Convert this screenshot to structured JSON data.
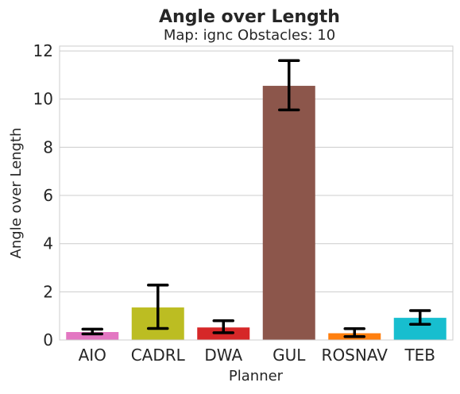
{
  "chart_data": {
    "type": "bar",
    "title": "Angle over Length",
    "subtitle": "Map: ignc Obstacles: 10",
    "xlabel": "Planner",
    "ylabel": "Angle over Length",
    "ylim": [
      0,
      12.2
    ],
    "yticks": [
      0,
      2,
      4,
      6,
      8,
      10,
      12
    ],
    "grid": "horizontal",
    "categories": [
      "AIO",
      "CADRL",
      "DWA",
      "GUL",
      "ROSNAV",
      "TEB"
    ],
    "values": [
      0.33,
      1.35,
      0.52,
      10.55,
      0.28,
      0.92
    ],
    "error_low": [
      0.25,
      0.48,
      0.3,
      9.55,
      0.14,
      0.65
    ],
    "error_high": [
      0.45,
      2.28,
      0.8,
      11.6,
      0.47,
      1.22
    ],
    "colors": [
      "#e377c2",
      "#bcbd22",
      "#d62728",
      "#8c564b",
      "#ff7f0e",
      "#17becf"
    ]
  }
}
